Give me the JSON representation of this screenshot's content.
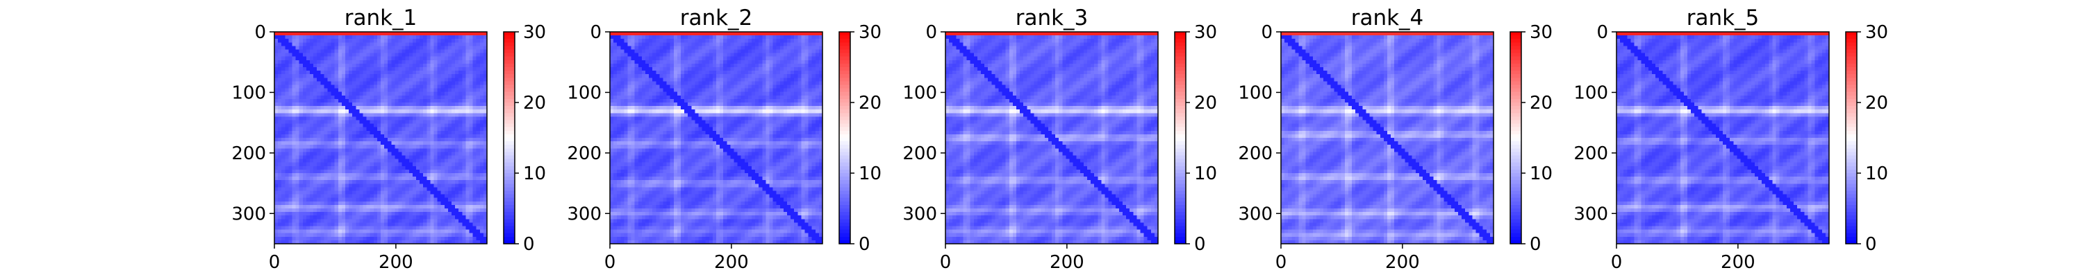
{
  "chart_data": {
    "type": "heatmap",
    "colormap": "bwr",
    "grid": false,
    "colors": {
      "low": "#0000ff",
      "mid": "#ffffff",
      "high": "#ff0000"
    },
    "shared": {
      "value_range": [
        0,
        30
      ],
      "colorbar_ticks": [
        "0",
        "10",
        "20",
        "30"
      ],
      "x_range": [
        0,
        350
      ],
      "y_range": [
        0,
        350
      ],
      "x_ticks": [
        0,
        200
      ],
      "y_ticks": [
        0,
        100,
        200,
        300
      ]
    },
    "panels": [
      {
        "title": "rank_1",
        "pattern": {
          "base": 5,
          "diag": 2,
          "edge": 28,
          "rows": [
            [
              130,
              7
            ],
            [
              185,
              3
            ],
            [
              240,
              3
            ],
            [
              290,
              4
            ],
            [
              330,
              3
            ]
          ],
          "cols": [
            [
              35,
              2
            ],
            [
              110,
              3
            ],
            [
              180,
              2
            ],
            [
              260,
              2
            ],
            [
              320,
              2
            ]
          ]
        }
      },
      {
        "title": "rank_2",
        "pattern": {
          "base": 5,
          "diag": 2,
          "edge": 28,
          "rows": [
            [
              130,
              8
            ],
            [
              185,
              3
            ],
            [
              250,
              3
            ],
            [
              300,
              3
            ],
            [
              330,
              2
            ]
          ],
          "cols": [
            [
              35,
              2
            ],
            [
              110,
              3
            ],
            [
              180,
              2
            ],
            [
              260,
              2
            ],
            [
              320,
              2
            ]
          ]
        }
      },
      {
        "title": "rank_3",
        "pattern": {
          "base": 5.5,
          "diag": 2,
          "edge": 28,
          "rows": [
            [
              130,
              7
            ],
            [
              175,
              4
            ],
            [
              245,
              3
            ],
            [
              295,
              3
            ],
            [
              330,
              3
            ]
          ],
          "cols": [
            [
              35,
              2
            ],
            [
              110,
              3
            ],
            [
              185,
              2
            ],
            [
              260,
              2
            ],
            [
              320,
              2
            ]
          ]
        }
      },
      {
        "title": "rank_4",
        "pattern": {
          "base": 6,
          "diag": 2,
          "edge": 27,
          "rows": [
            [
              130,
              6
            ],
            [
              170,
              4
            ],
            [
              240,
              4
            ],
            [
              300,
              4
            ],
            [
              335,
              3
            ]
          ],
          "cols": [
            [
              35,
              2
            ],
            [
              110,
              3
            ],
            [
              180,
              3
            ],
            [
              260,
              2
            ],
            [
              320,
              2
            ]
          ]
        }
      },
      {
        "title": "rank_5",
        "pattern": {
          "base": 5,
          "diag": 2,
          "edge": 28,
          "rows": [
            [
              130,
              7
            ],
            [
              180,
              3
            ],
            [
              245,
              3
            ],
            [
              290,
              4
            ],
            [
              330,
              3
            ]
          ],
          "cols": [
            [
              35,
              2
            ],
            [
              110,
              3
            ],
            [
              180,
              2
            ],
            [
              260,
              2
            ],
            [
              320,
              2
            ]
          ]
        }
      }
    ]
  }
}
